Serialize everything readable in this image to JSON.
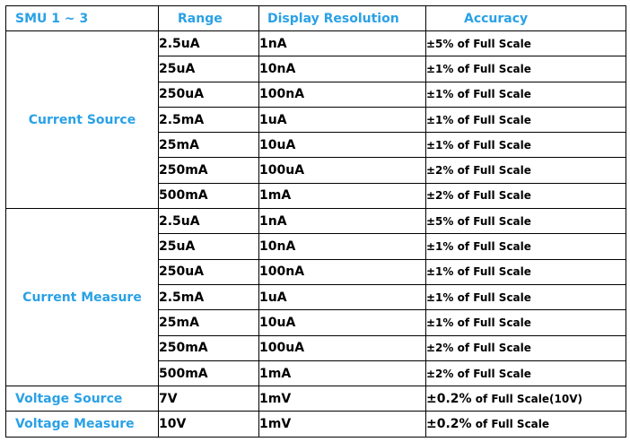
{
  "headers": [
    "SMU 1 ~ 3",
    "Range",
    "Display Resolution",
    "Accuracy"
  ],
  "groups": {
    "current_source": {
      "label": "Current Source",
      "rows": [
        {
          "range": "2.5uA",
          "resolution": "1nA",
          "accuracy": "±5% of Full Scale"
        },
        {
          "range": "25uA",
          "resolution": "10nA",
          "accuracy": "±1% of Full Scale"
        },
        {
          "range": "250uA",
          "resolution": "100nA",
          "accuracy": "±1% of Full Scale"
        },
        {
          "range": "2.5mA",
          "resolution": "1uA",
          "accuracy": "±1% of Full Scale"
        },
        {
          "range": "25mA",
          "resolution": "10uA",
          "accuracy": "±1% of Full Scale"
        },
        {
          "range": "250mA",
          "resolution": "100uA",
          "accuracy": "±2% of Full Scale"
        },
        {
          "range": "500mA",
          "resolution": "1mA",
          "accuracy": "±2% of Full Scale"
        }
      ]
    },
    "current_measure": {
      "label": "Current Measure",
      "rows": [
        {
          "range": "2.5uA",
          "resolution": "1nA",
          "accuracy": "±5% of Full Scale"
        },
        {
          "range": "25uA",
          "resolution": "10nA",
          "accuracy": "±1% of Full Scale"
        },
        {
          "range": "250uA",
          "resolution": "100nA",
          "accuracy": "±1% of Full Scale"
        },
        {
          "range": "2.5mA",
          "resolution": "1uA",
          "accuracy": "±1% of Full Scale"
        },
        {
          "range": "25mA",
          "resolution": "10uA",
          "accuracy": "±1% of Full Scale"
        },
        {
          "range": "250mA",
          "resolution": "100uA",
          "accuracy": "±2% of Full Scale"
        },
        {
          "range": "500mA",
          "resolution": "1mA",
          "accuracy": "±2% of Full Scale"
        }
      ]
    },
    "voltage_source": {
      "label": "Voltage Source",
      "range": "7V",
      "resolution": "1mV",
      "accuracy_prefix": "±0.2%",
      "accuracy_suffix": " of Full Scale(10V)"
    },
    "voltage_measure": {
      "label": "Voltage Measure",
      "range": "10V",
      "resolution": "1mV",
      "accuracy_prefix": "±0.2%",
      "accuracy_suffix": " of Full Scale"
    }
  },
  "colors": {
    "header_text": "#2aa1e6",
    "border": "#000000"
  }
}
